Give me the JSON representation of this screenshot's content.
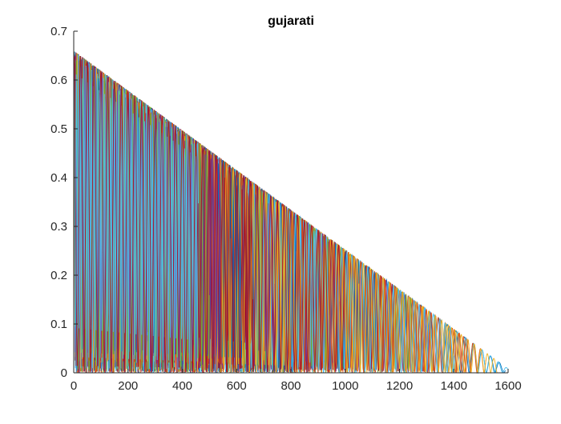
{
  "figure": {
    "title": "gujarati"
  },
  "chart_data": {
    "type": "line",
    "title": "gujarati",
    "xlabel": "",
    "ylabel": "",
    "xlim": [
      0,
      1600
    ],
    "ylim": [
      0,
      0.7
    ],
    "x_ticks": [
      0,
      200,
      400,
      600,
      800,
      1000,
      1200,
      1400,
      1600
    ],
    "x_tick_labels": [
      "0",
      "200",
      "400",
      "600",
      "800",
      "1000",
      "1200",
      "1400",
      "1600"
    ],
    "y_ticks": [
      0,
      0.1,
      0.2,
      0.3,
      0.4,
      0.5,
      0.6,
      0.7
    ],
    "y_tick_labels": [
      "0",
      "0.1",
      "0.2",
      "0.3",
      "0.4",
      "0.5",
      "0.6",
      "0.7"
    ],
    "grid": false,
    "legend": "none",
    "series_colors": [
      "#0072BD",
      "#D95319",
      "#EDB120",
      "#7E2F8E",
      "#77AC30",
      "#4DBEEE",
      "#A2142F"
    ],
    "series_count": 28,
    "series": [
      {
        "period": 32,
        "length": 1590
      },
      {
        "period": 26,
        "length": 1520
      },
      {
        "period": 21,
        "length": 1420
      },
      {
        "period": 18,
        "length": 1360
      },
      {
        "period": 16,
        "length": 1250
      },
      {
        "period": 30,
        "length": 1600
      },
      {
        "period": 14,
        "length": 1180
      },
      {
        "period": 12,
        "length": 1120
      },
      {
        "period": 22,
        "length": 1300
      },
      {
        "period": 20,
        "length": 1050
      },
      {
        "period": 11,
        "length": 980
      },
      {
        "period": 13,
        "length": 940
      },
      {
        "period": 10,
        "length": 900
      },
      {
        "period": 15,
        "length": 860
      },
      {
        "period": 9,
        "length": 820
      },
      {
        "period": 17,
        "length": 1470
      },
      {
        "period": 12,
        "length": 780
      },
      {
        "period": 8,
        "length": 740
      },
      {
        "period": 10,
        "length": 700
      },
      {
        "period": 19,
        "length": 1400
      },
      {
        "period": 7,
        "length": 660
      },
      {
        "period": 9,
        "length": 620
      },
      {
        "period": 11,
        "length": 580
      },
      {
        "period": 24,
        "length": 1560
      },
      {
        "period": 8,
        "length": 540
      },
      {
        "period": 13,
        "length": 500
      },
      {
        "period": 7,
        "length": 460
      },
      {
        "period": 25,
        "length": 1000
      }
    ]
  }
}
